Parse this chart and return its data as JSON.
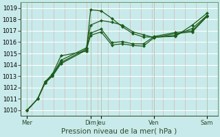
{
  "xlabel": "Pression niveau de la mer( hPa )",
  "bg_color": "#c8eaea",
  "plot_bg_color": "#c8eaea",
  "grid_major_color": "#ffffff",
  "grid_minor_color": "#d8a8a8",
  "line_color": "#1a5c1a",
  "ylim": [
    1009.5,
    1019.5
  ],
  "yticks": [
    1010,
    1011,
    1012,
    1013,
    1014,
    1015,
    1016,
    1017,
    1018,
    1019
  ],
  "xlabel_fontsize": 7.5,
  "tick_fontsize": 6,
  "xtick_labels": [
    "Mer",
    "Dim",
    "Jeu",
    "Ven",
    "Sam"
  ],
  "xtick_positions": [
    0.0,
    3.0,
    3.5,
    6.0,
    8.5
  ],
  "xlim": [
    -0.3,
    9.0
  ],
  "series": [
    {
      "x": [
        0.0,
        0.5,
        0.85,
        1.2,
        1.6,
        2.8,
        3.0,
        3.5,
        4.0,
        4.5,
        5.0,
        5.5,
        6.0,
        7.0,
        7.8,
        8.5
      ],
      "y": [
        1010.0,
        1011.0,
        1012.5,
        1013.2,
        1014.8,
        1015.2,
        1018.85,
        1018.75,
        1018.1,
        1017.35,
        1016.75,
        1016.45,
        1016.45,
        1016.5,
        1017.5,
        1018.55
      ]
    },
    {
      "x": [
        0.0,
        0.5,
        0.85,
        1.2,
        1.6,
        2.8,
        3.0,
        3.5,
        4.0,
        4.5,
        5.0,
        5.5,
        6.0,
        7.0,
        7.8,
        8.5
      ],
      "y": [
        1010.0,
        1011.0,
        1012.5,
        1013.1,
        1014.4,
        1015.5,
        1017.5,
        1017.9,
        1017.75,
        1017.5,
        1016.9,
        1016.65,
        1016.4,
        1016.6,
        1017.2,
        1018.35
      ]
    },
    {
      "x": [
        0.0,
        0.5,
        0.85,
        1.2,
        1.6,
        2.8,
        3.0,
        3.5,
        4.0,
        4.5,
        5.0,
        5.5,
        6.0,
        7.0,
        7.8,
        8.5
      ],
      "y": [
        1010.0,
        1011.0,
        1012.4,
        1013.1,
        1014.2,
        1015.4,
        1016.8,
        1017.15,
        1015.95,
        1016.05,
        1015.85,
        1015.85,
        1016.5,
        1016.85,
        1017.0,
        1018.3
      ]
    },
    {
      "x": [
        0.0,
        0.5,
        0.85,
        1.2,
        1.6,
        2.8,
        3.0,
        3.5,
        4.0,
        4.5,
        5.0,
        5.5,
        6.0,
        7.0,
        7.8,
        8.5
      ],
      "y": [
        1010.0,
        1011.0,
        1012.4,
        1013.0,
        1014.1,
        1015.3,
        1016.6,
        1016.9,
        1015.75,
        1015.85,
        1015.7,
        1015.65,
        1016.4,
        1016.75,
        1016.9,
        1018.25
      ]
    }
  ]
}
